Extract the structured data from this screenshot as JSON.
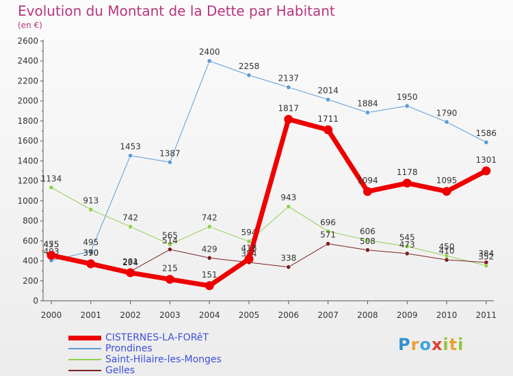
{
  "title": "Evolution du Montant de la Dette par Habitant",
  "unit": "(en €)",
  "brand": "Proxiti",
  "chart_data": {
    "type": "line",
    "x": [
      "2000",
      "2001",
      "2002",
      "2003",
      "2004",
      "2005",
      "2006",
      "2007",
      "2008",
      "2009",
      "2010",
      "2011"
    ],
    "ylim": [
      0,
      2600
    ],
    "yticks": [
      0,
      200,
      400,
      600,
      800,
      1000,
      1200,
      1400,
      1600,
      1800,
      2000,
      2200,
      2400,
      2600
    ],
    "grid": false,
    "legend_position": "bottom-left",
    "series": [
      {
        "name": "CISTERNES-LA-FORêT",
        "color": "#ee0000",
        "width": 7,
        "values": [
          455,
          370,
          281,
          215,
          151,
          418,
          1817,
          1711,
          1094,
          1178,
          1095,
          1301
        ]
      },
      {
        "name": "Prondines",
        "color": "#5b9bd5",
        "width": 1,
        "values": [
          403,
          495,
          1453,
          1387,
          2400,
          2258,
          2137,
          2014,
          1884,
          1950,
          1790,
          1586
        ]
      },
      {
        "name": "Saint-Hilaire-les-Monges",
        "color": "#8fd14f",
        "width": 1,
        "values": [
          1134,
          913,
          742,
          565,
          742,
          594,
          943,
          696,
          606,
          545,
          450,
          352
        ]
      },
      {
        "name": "Gelles",
        "color": "#7a2020",
        "width": 1,
        "values": [
          475,
          390,
          294,
          514,
          429,
          384,
          338,
          571,
          508,
          473,
          410,
          384
        ]
      }
    ]
  }
}
